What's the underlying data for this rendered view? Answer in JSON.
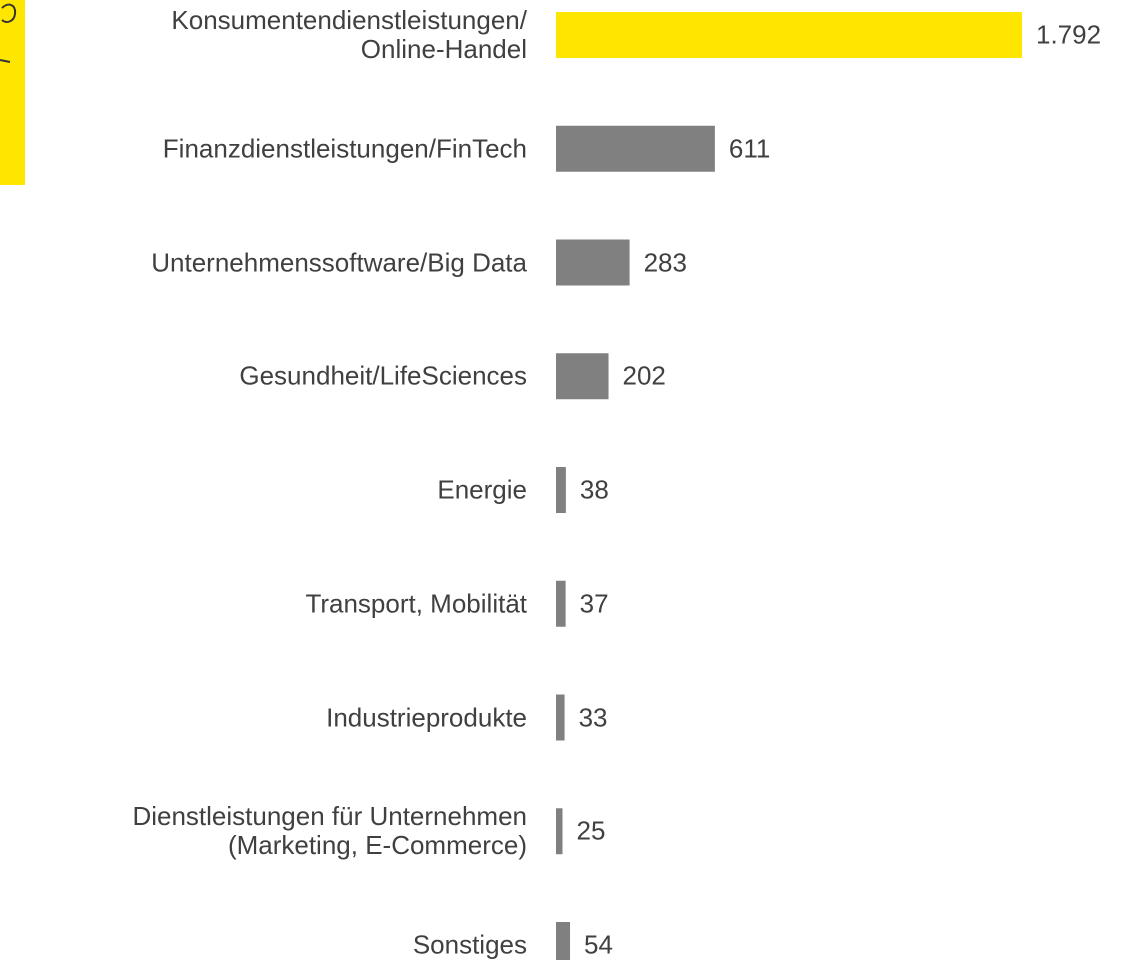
{
  "chart_data": {
    "type": "bar",
    "orientation": "horizontal",
    "categories": [
      "Konsumentendienstleistungen/\nOnline-Handel",
      "Finanzdienstleistungen/FinTech",
      "Unternehmenssoftware/Big Data",
      "Gesundheit/LifeSciences",
      "Energie",
      "Transport, Mobilität",
      "Industrieprodukte",
      "Dienstleistungen für Unternehmen\n(Marketing, E-Commerce)",
      "Sonstiges"
    ],
    "values": [
      1792,
      611,
      283,
      202,
      38,
      37,
      33,
      25,
      54
    ],
    "value_labels": [
      "1.792",
      "611",
      "283",
      "202",
      "38",
      "37",
      "33",
      "25",
      "54"
    ],
    "colors": [
      "#ffe600",
      "#808080",
      "#808080",
      "#808080",
      "#808080",
      "#808080",
      "#808080",
      "#808080",
      "#808080"
    ]
  }
}
